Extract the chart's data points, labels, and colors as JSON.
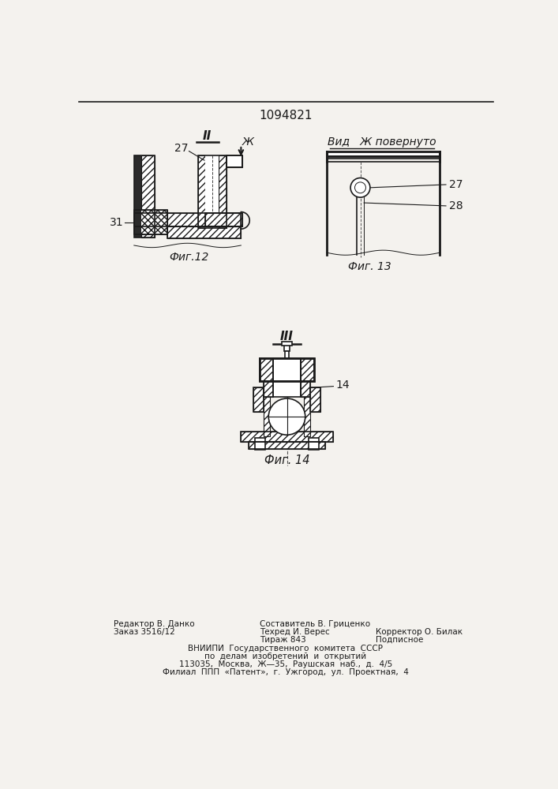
{
  "patent_number": "1094821",
  "bg_color": "#f4f2ee",
  "line_color": "#1a1a1a",
  "fig12_label": "Фиг.12",
  "fig13_label": "Фиг. 13",
  "fig14_label": "Фиг. 14",
  "view_label": "Вид   Ж повернуто",
  "section_II": "II",
  "section_III": "III",
  "label_27_fig12": "27",
  "label_31_fig12": "31",
  "label_Zh": "Ж",
  "label_27_fig13": "27",
  "label_28_fig13": "28",
  "label_14_fig14": "14",
  "footer_col1_line1": "Редактор В. Данко",
  "footer_col1_line2": "Заказ 3516/12",
  "footer_center_line1": "Составитель В. Гриценко",
  "footer_center_line2": "Техред И. Верес",
  "footer_center_line3": "Тираж 843",
  "footer_col3_line2": "Корректор О. Билак",
  "footer_col3_line3": "Подписное",
  "footer_line4": "ВНИИПИ  Государственного  комитета  СССР",
  "footer_line5": "по  делам  изобретений  и  открытий",
  "footer_line6": "113035,  Москва,  Ж—̵35,  Раушская  наб.,  д.  4/5",
  "footer_line7": "Филиал  ППП  «Патент»,  г.  Ужгород,  ул.  Проектная,  4"
}
